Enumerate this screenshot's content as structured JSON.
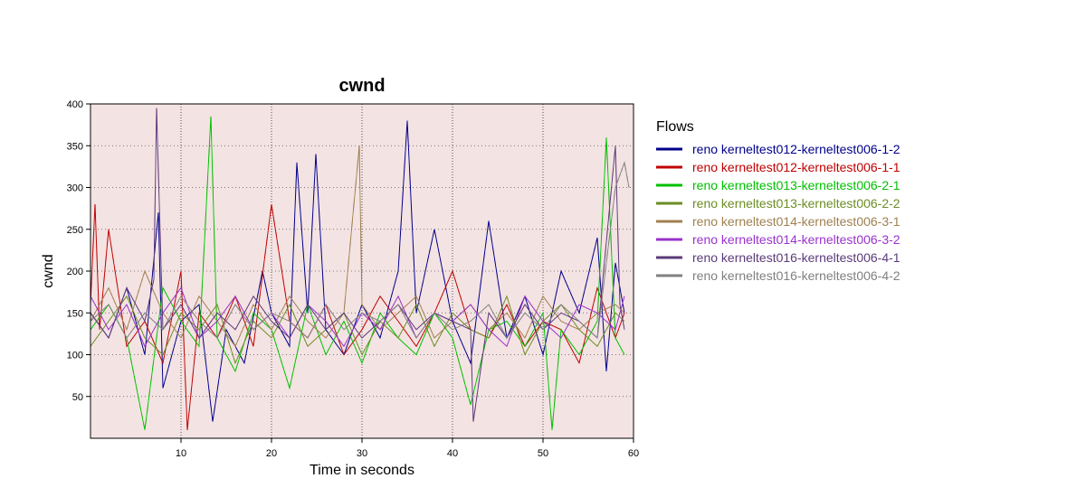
{
  "chart_data": {
    "type": "line",
    "title": "cwnd",
    "xlabel": "Time in seconds",
    "ylabel": "cwnd",
    "xlim": [
      0,
      60
    ],
    "ylim": [
      0,
      400
    ],
    "x_ticks": [
      "10",
      "20",
      "30",
      "40",
      "50",
      "60"
    ],
    "y_ticks": [
      "50",
      "100",
      "150",
      "200",
      "250",
      "300",
      "350",
      "400"
    ],
    "grid": "dotted",
    "legend_title": "Flows",
    "legend_position": "right",
    "series": [
      {
        "name": "reno kerneltest012-kerneltest006-1-2",
        "color": "#00008b",
        "x": [
          0,
          2,
          4,
          6,
          7.5,
          8,
          10,
          12,
          13.5,
          15,
          17,
          19,
          20,
          22,
          22.8,
          24,
          24.9,
          26,
          28,
          30,
          32,
          34,
          35,
          36,
          38,
          40,
          42,
          44,
          46,
          48,
          50,
          52,
          54,
          56,
          57,
          58,
          59
        ],
        "y": [
          150,
          120,
          180,
          100,
          270,
          60,
          140,
          160,
          20,
          130,
          90,
          200,
          150,
          110,
          330,
          150,
          340,
          130,
          100,
          160,
          120,
          200,
          380,
          150,
          250,
          140,
          90,
          260,
          120,
          170,
          100,
          200,
          150,
          240,
          80,
          210,
          150
        ]
      },
      {
        "name": "reno kerneltest012-kerneltest006-1-1",
        "color": "#c00000",
        "x": [
          0,
          0.5,
          1,
          2,
          4,
          6,
          8,
          10,
          10.7,
          12,
          14,
          16,
          18,
          20,
          22,
          24,
          26,
          28,
          30,
          32,
          34,
          36,
          38,
          40,
          42,
          44,
          46,
          48,
          50,
          52,
          54,
          56,
          58,
          59
        ],
        "y": [
          160,
          280,
          130,
          250,
          110,
          140,
          90,
          200,
          10,
          150,
          120,
          170,
          110,
          280,
          140,
          120,
          160,
          100,
          130,
          170,
          140,
          110,
          150,
          200,
          130,
          120,
          160,
          110,
          140,
          130,
          90,
          180,
          120,
          150
        ]
      },
      {
        "name": "reno kerneltest013-kerneltest006-2-1",
        "color": "#00c000",
        "x": [
          0,
          2,
          4,
          6,
          8,
          10,
          12,
          13.3,
          14,
          16,
          18,
          20,
          22,
          24,
          26,
          28,
          30,
          32,
          34,
          36,
          38,
          40,
          42,
          44,
          46,
          48,
          50,
          51,
          52,
          54,
          56,
          57,
          58,
          59
        ],
        "y": [
          130,
          160,
          120,
          10,
          180,
          140,
          110,
          385,
          120,
          80,
          150,
          130,
          60,
          160,
          100,
          140,
          90,
          150,
          120,
          100,
          150,
          120,
          40,
          130,
          140,
          110,
          150,
          10,
          130,
          100,
          140,
          360,
          120,
          100
        ]
      },
      {
        "name": "reno kerneltest013-kerneltest006-2-2",
        "color": "#6b8e23",
        "x": [
          0,
          2,
          4,
          6,
          8,
          10,
          12,
          14,
          16,
          18,
          20,
          22,
          24,
          26,
          28,
          30,
          32,
          34,
          36,
          38,
          40,
          42,
          44,
          46,
          48,
          50,
          52,
          54,
          56,
          58,
          59
        ],
        "y": [
          110,
          140,
          170,
          120,
          100,
          150,
          130,
          160,
          90,
          140,
          120,
          160,
          110,
          130,
          150,
          100,
          140,
          120,
          160,
          110,
          150,
          130,
          120,
          170,
          100,
          140,
          160,
          130,
          110,
          150,
          140
        ]
      },
      {
        "name": "reno kerneltest014-kerneltest006-3-1",
        "color": "#a08050",
        "x": [
          0,
          2,
          4,
          6,
          8,
          10,
          12,
          14,
          16,
          18,
          20,
          22,
          24,
          26,
          28,
          29.7,
          30,
          32,
          34,
          36,
          38,
          40,
          42,
          44,
          46,
          48,
          50,
          52,
          54,
          56,
          58,
          59
        ],
        "y": [
          140,
          180,
          130,
          200,
          150,
          120,
          170,
          140,
          110,
          160,
          130,
          170,
          140,
          120,
          150,
          350,
          160,
          130,
          150,
          170,
          120,
          140,
          160,
          130,
          150,
          120,
          170,
          140,
          130,
          150,
          160,
          150
        ]
      },
      {
        "name": "reno kerneltest014-kerneltest006-3-2",
        "color": "#9932cc",
        "x": [
          0,
          2,
          4,
          6,
          8,
          10,
          12,
          14,
          16,
          18,
          20,
          22,
          24,
          26,
          28,
          30,
          32,
          34,
          36,
          38,
          40,
          42,
          44,
          46,
          48,
          50,
          52,
          54,
          56,
          58,
          59
        ],
        "y": [
          170,
          130,
          160,
          110,
          150,
          180,
          120,
          140,
          170,
          130,
          150,
          120,
          160,
          140,
          110,
          150,
          130,
          170,
          120,
          150,
          140,
          160,
          130,
          110,
          170,
          140,
          120,
          160,
          150,
          130,
          170
        ]
      },
      {
        "name": "reno kerneltest016-kerneltest006-4-1",
        "color": "#5b3a7a",
        "x": [
          0,
          2,
          4,
          6,
          7,
          7.3,
          8,
          10,
          12,
          14,
          16,
          18,
          20,
          22,
          24,
          26,
          28,
          30,
          32,
          34,
          36,
          38,
          40,
          42,
          42.3,
          44,
          46,
          48,
          50,
          52,
          54,
          56,
          58,
          58.5,
          59
        ],
        "y": [
          150,
          120,
          180,
          140,
          190,
          395,
          130,
          160,
          120,
          150,
          130,
          170,
          140,
          120,
          160,
          130,
          150,
          120,
          140,
          160,
          130,
          150,
          140,
          130,
          20,
          150,
          120,
          160,
          130,
          150,
          140,
          120,
          350,
          160,
          130
        ]
      },
      {
        "name": "reno kerneltest016-kerneltest006-4-2",
        "color": "#808080",
        "x": [
          0,
          2,
          4,
          6,
          8,
          10,
          12,
          14,
          16,
          18,
          20,
          22,
          24,
          26,
          28,
          30,
          32,
          34,
          36,
          38,
          40,
          42,
          44,
          46,
          48,
          50,
          52,
          54,
          56,
          58,
          59,
          59.5
        ],
        "y": [
          140,
          160,
          120,
          150,
          130,
          170,
          140,
          120,
          160,
          130,
          150,
          140,
          120,
          160,
          130,
          150,
          140,
          160,
          120,
          150,
          130,
          140,
          160,
          120,
          150,
          130,
          160,
          140,
          120,
          300,
          330,
          300
        ]
      }
    ]
  }
}
